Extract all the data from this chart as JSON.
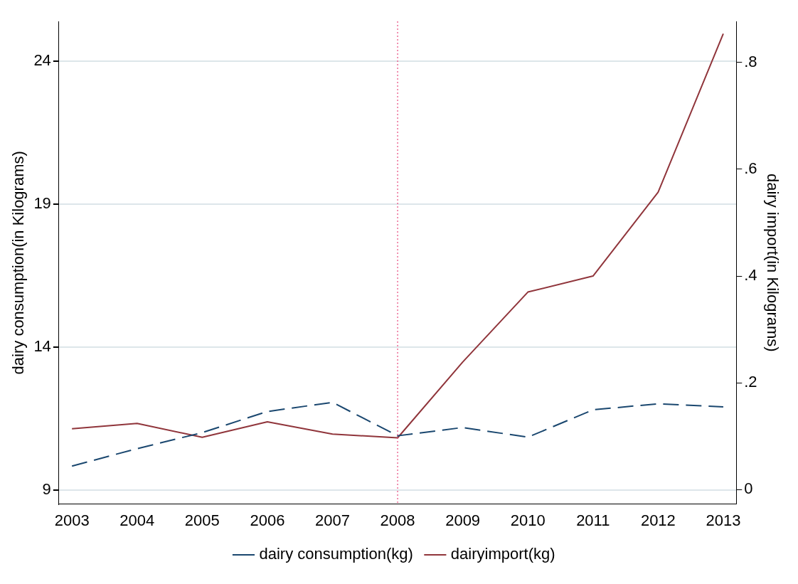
{
  "chart_data": {
    "type": "line",
    "x": [
      2003,
      2004,
      2005,
      2006,
      2007,
      2008,
      2009,
      2010,
      2011,
      2012,
      2013
    ],
    "xlim": [
      2002.8,
      2013.2
    ],
    "xticks": [
      2003,
      2004,
      2005,
      2006,
      2007,
      2008,
      2009,
      2010,
      2011,
      2012,
      2013
    ],
    "ylabel": "dairy consumption(in Kilograms)",
    "y2label": "dairy import(in Kilograms)",
    "ylim": [
      8.5,
      25.4
    ],
    "yticks": [
      9,
      14,
      19,
      24
    ],
    "y2lim": [
      -0.027,
      0.877
    ],
    "y2ticks": [
      0,
      {
        "value": 0.2,
        "label": ".2"
      },
      {
        "value": 0.4,
        "label": ".4"
      },
      {
        "value": 0.6,
        "label": ".6"
      },
      {
        "value": 0.8,
        "label": ".8"
      }
    ],
    "series": [
      {
        "name": "dairy consumption(kg)",
        "color": "#1a476f",
        "line_style": "dashed",
        "values": [
          9.83,
          10.44,
          11.0,
          11.74,
          12.06,
          10.89,
          11.18,
          10.84,
          11.8,
          12.01,
          11.9
        ]
      },
      {
        "name": "dairyimport(kg)",
        "color": "#90353b",
        "line_style": "solid",
        "axis": "y2",
        "values": [
          0.114,
          0.124,
          0.098,
          0.127,
          0.104,
          0.097,
          0.239,
          0.37,
          0.4,
          0.557,
          0.854
        ]
      }
    ],
    "ref_lines": [
      {
        "axis": "x",
        "value": 2008,
        "color": "#e8467c",
        "line_style": "dotted"
      }
    ],
    "grid": "y",
    "legend": "bottom",
    "marker": "none"
  }
}
